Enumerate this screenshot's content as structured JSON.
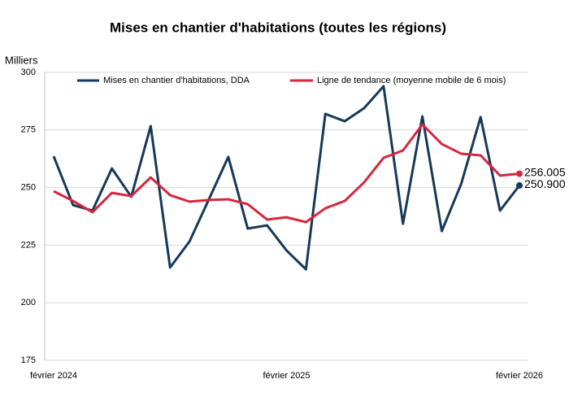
{
  "chart_data": {
    "type": "line",
    "title": "Mises en chantier d'habitations (toutes les régions)",
    "y_label": "Milliers",
    "categories": [
      "février 2024",
      null,
      null,
      null,
      null,
      null,
      null,
      null,
      null,
      null,
      null,
      null,
      "février 2025",
      null,
      null,
      null,
      null,
      null,
      null,
      null,
      null,
      null,
      null,
      null,
      "février 2026"
    ],
    "series": [
      {
        "name": "Mises en chantier d'habitations, DDA",
        "color": "#16395a",
        "values": [
          263.6,
          242.4,
          240.0,
          258.3,
          246.0,
          276.7,
          215.3,
          226.6,
          244.9,
          263.3,
          232.2,
          233.6,
          222.7,
          214.5,
          282.0,
          278.8,
          284.5,
          294.0,
          234.3,
          280.9,
          231.1,
          251.6,
          280.6,
          240.0,
          250.9
        ],
        "value_labels": [
          null,
          null,
          null,
          null,
          null,
          null,
          null,
          null,
          null,
          null,
          null,
          null,
          null,
          null,
          null,
          null,
          null,
          null,
          null,
          null,
          null,
          null,
          null,
          null,
          "250.900"
        ]
      },
      {
        "name": "Ligne de tendance (moyenne mobile de 6 mois)",
        "color": "#d7263d",
        "values": [
          248.4,
          244.2,
          239.3,
          247.7,
          246.3,
          254.4,
          246.7,
          243.9,
          244.6,
          244.9,
          242.8,
          236.1,
          237.1,
          235.0,
          241.0,
          244.2,
          252.3,
          262.9,
          266.1,
          277.4,
          268.9,
          264.7,
          264.0,
          255.2,
          256.005
        ],
        "value_labels": [
          null,
          null,
          null,
          null,
          null,
          null,
          null,
          null,
          null,
          null,
          null,
          null,
          null,
          null,
          null,
          null,
          null,
          null,
          null,
          null,
          null,
          null,
          null,
          null,
          "256.005"
        ]
      }
    ],
    "ylim": [
      175,
      300
    ],
    "yticks": [
      175,
      200,
      225,
      250,
      275,
      300
    ],
    "grid": true,
    "legend": "top"
  }
}
